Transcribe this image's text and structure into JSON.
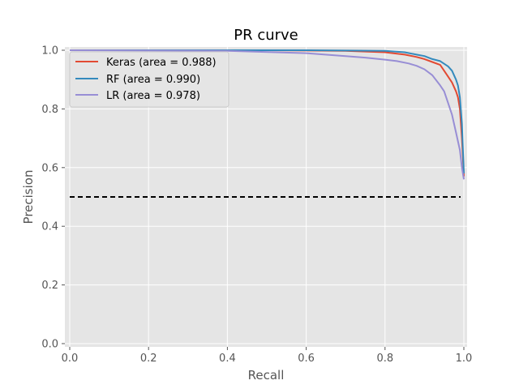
{
  "chart_data": {
    "type": "line",
    "title": "PR curve",
    "xlabel": "Recall",
    "ylabel": "Precision",
    "xlim": [
      0,
      1
    ],
    "ylim": [
      0,
      1
    ],
    "xticks": [
      "0.0",
      "0.2",
      "0.4",
      "0.6",
      "0.8",
      "1.0"
    ],
    "yticks": [
      "0.0",
      "0.2",
      "0.4",
      "0.6",
      "0.8",
      "1.0"
    ],
    "grid": true,
    "legend_position": "top-left",
    "background_color": "#e5e5e5",
    "series": [
      {
        "name": "Keras (area = 0.988)",
        "color": "#e24a33",
        "x": [
          0.0,
          0.5,
          0.7,
          0.8,
          0.85,
          0.88,
          0.9,
          0.92,
          0.94,
          0.95,
          0.96,
          0.97,
          0.98,
          0.985,
          0.99,
          0.995,
          1.0
        ],
        "y": [
          1.0,
          1.0,
          0.998,
          0.993,
          0.985,
          0.977,
          0.97,
          0.96,
          0.95,
          0.93,
          0.91,
          0.89,
          0.86,
          0.84,
          0.8,
          0.7,
          0.57
        ]
      },
      {
        "name": "RF (area = 0.990)",
        "color": "#348abd",
        "x": [
          0.0,
          0.6,
          0.8,
          0.85,
          0.88,
          0.9,
          0.92,
          0.94,
          0.96,
          0.97,
          0.98,
          0.985,
          0.99,
          0.995,
          1.0
        ],
        "y": [
          1.0,
          1.0,
          0.998,
          0.993,
          0.985,
          0.98,
          0.97,
          0.963,
          0.945,
          0.93,
          0.9,
          0.88,
          0.84,
          0.75,
          0.58
        ]
      },
      {
        "name": "LR (area = 0.978)",
        "color": "#988ed5",
        "x": [
          0.0,
          0.4,
          0.6,
          0.7,
          0.75,
          0.8,
          0.83,
          0.86,
          0.88,
          0.9,
          0.92,
          0.94,
          0.95,
          0.96,
          0.97,
          0.98,
          0.99,
          0.995,
          1.0
        ],
        "y": [
          1.0,
          0.998,
          0.99,
          0.98,
          0.975,
          0.968,
          0.963,
          0.955,
          0.947,
          0.935,
          0.915,
          0.88,
          0.86,
          0.82,
          0.78,
          0.72,
          0.66,
          0.6,
          0.56
        ]
      }
    ],
    "reference_line": {
      "y": 0.5,
      "x_start": 0.0,
      "x_end": 1.0,
      "style": "dashed",
      "color": "#000000"
    }
  }
}
